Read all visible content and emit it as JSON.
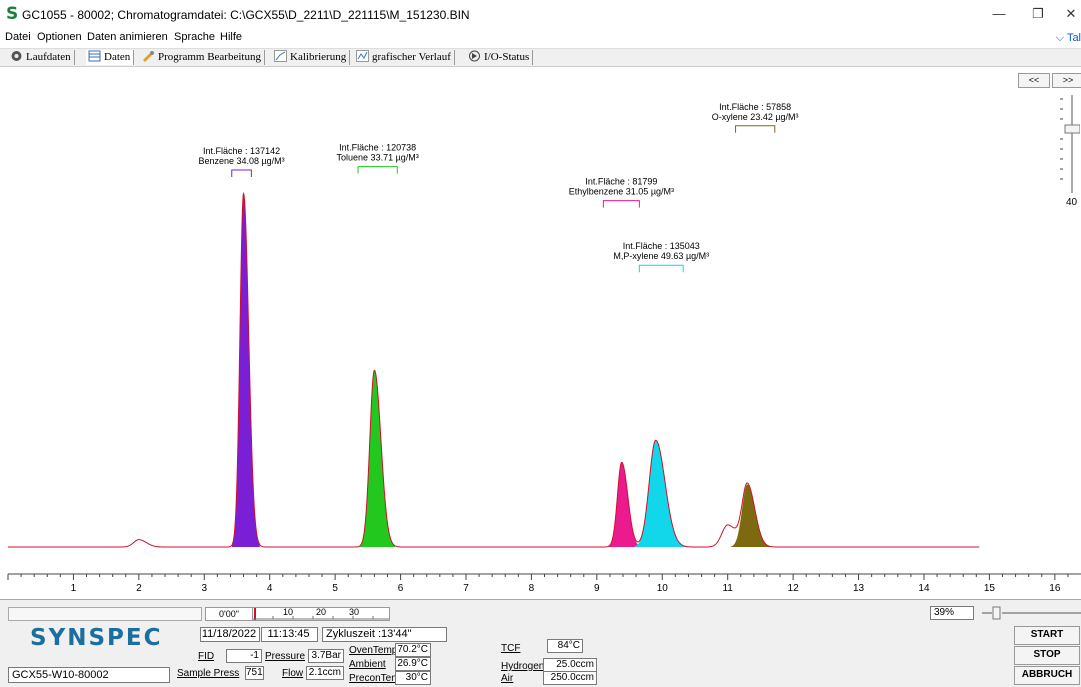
{
  "window": {
    "title": "GC1055 - 80002; Chromatogramdatei: C:\\GCX55\\D_2211\\D_221115\\M_151230.BIN",
    "logo_glyph": "S",
    "minimize": "—",
    "restore": "❐",
    "close": "✕"
  },
  "menu": {
    "items": [
      "Datei",
      "Optionen",
      "Daten animieren",
      "Sprache",
      "Hilfe"
    ],
    "right_label": "Tal"
  },
  "tabs": [
    {
      "label": "Laufdaten",
      "icon": "gear-icon"
    },
    {
      "label": "Daten",
      "icon": "table-icon"
    },
    {
      "label": "Programm Bearbeitung",
      "icon": "tools-icon"
    },
    {
      "label": "Kalibrierung",
      "icon": "chart-icon"
    },
    {
      "label": "grafischer Verlauf",
      "icon": "graph-icon"
    },
    {
      "label": "I/O-Status",
      "icon": "io-icon"
    }
  ],
  "nav": {
    "prev": "<<",
    "next": ">>"
  },
  "vslider": {
    "value": "40"
  },
  "chart_data": {
    "type": "line",
    "xlim": [
      0,
      16.4
    ],
    "xticks": [
      1,
      2,
      3,
      4,
      5,
      6,
      7,
      8,
      9,
      10,
      11,
      12,
      13,
      14,
      15,
      16
    ],
    "baseline_end_x": 14.85,
    "peaks": [
      {
        "name": "Benzene",
        "rt": 3.6,
        "height": 0.96,
        "width": 0.055,
        "color": "#7a1fd6",
        "area_label": "Int.Fläche : 137142",
        "conc_label": "Benzene 34.08 µg/M³",
        "marker": [
          3.42,
          3.72
        ],
        "label_y": 0.2
      },
      {
        "name": "Toluene",
        "rt": 5.6,
        "height": 0.48,
        "width": 0.07,
        "color": "#22c81e",
        "area_label": "Int.Fläche : 120738",
        "conc_label": "Toluene 33.71 µg/M³",
        "marker": [
          5.35,
          5.95
        ],
        "label_y": 0.19
      },
      {
        "name": "Ethylbenzene",
        "rt": 9.38,
        "height": 0.23,
        "width": 0.065,
        "color": "#ec1a8f",
        "area_label": "Int.Fläche : 81799",
        "conc_label": "Ethylbenzene 31.05 µg/M³",
        "marker": [
          9.1,
          9.65
        ],
        "label_y": 0.29
      },
      {
        "name": "M,P-xylene",
        "rt": 9.9,
        "height": 0.29,
        "width": 0.1,
        "color": "#12d7ea",
        "area_label": "Int.Fläche : 135043",
        "conc_label": "M,P-xylene 49.63 µg/M³",
        "marker": [
          9.65,
          10.32
        ],
        "label_y": 0.48
      },
      {
        "name": "O-xylene",
        "rt": 11.3,
        "height": 0.17,
        "width": 0.08,
        "color": "#7d6a10",
        "area_label": "Int.Fläche : 57858",
        "conc_label": "O-xylene 23.42 µg/M³",
        "marker": [
          11.12,
          11.72
        ],
        "label_y": 0.07
      }
    ],
    "minor_peaks": [
      {
        "rt": 2.0,
        "height": 0.02,
        "width": 0.08
      },
      {
        "rt": 11.0,
        "height": 0.06,
        "width": 0.09
      }
    ]
  },
  "bottom": {
    "logo": "SYNSPEC",
    "device_name": "GCX55-W10-80002",
    "date": "11/18/2022",
    "time": "11:13:45",
    "cycle_label": "Zykluszeit :13'44\"",
    "timeline": {
      "start": "0'00\"",
      "ticks": [
        "10",
        "20",
        "30"
      ]
    },
    "percent": "39%",
    "fid": {
      "label": "FID",
      "value": "-1"
    },
    "pressure": {
      "label": "Pressure",
      "value": "3.7Bar"
    },
    "sample_press": {
      "label": "Sample Press",
      "value": "751"
    },
    "flow": {
      "label": "Flow",
      "value": "2.1ccm"
    },
    "oven_temp": {
      "label": "OvenTemp",
      "value": "70.2°C"
    },
    "ambient": {
      "label": "Ambient",
      "value": "26.9°C"
    },
    "precon_temp": {
      "label": "PreconTem",
      "value": "30°C"
    },
    "tcf": {
      "label": "TCF",
      "value": "84°C"
    },
    "hydrogen": {
      "label": "Hydrogen",
      "value": "25.0ccm"
    },
    "air": {
      "label": "Air",
      "value": "250.0ccm"
    },
    "buttons": {
      "start": "START",
      "stop": "STOP",
      "abort": "ABBRUCH"
    }
  }
}
